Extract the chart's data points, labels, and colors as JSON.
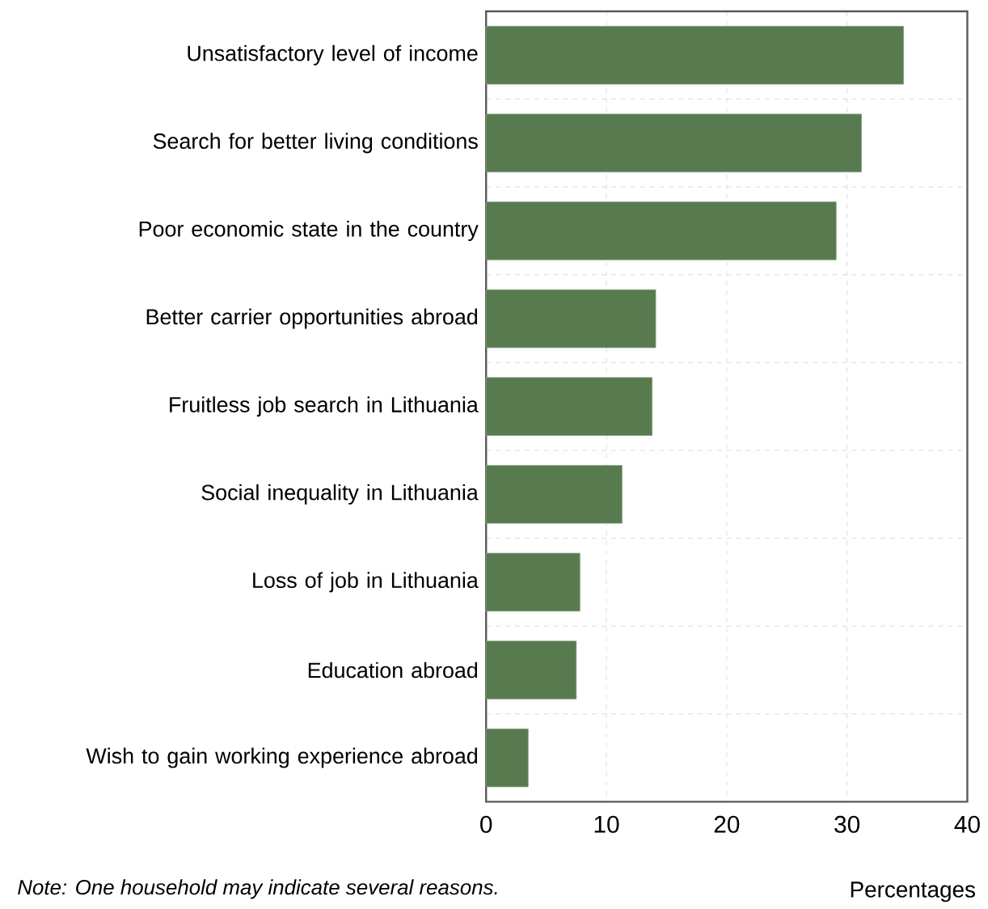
{
  "chart_data": {
    "type": "bar",
    "orientation": "horizontal",
    "categories": [
      "Unsatisfactory level of income",
      "Search for better living conditions",
      "Poor economic state in the country",
      "Better carrier opportunities abroad",
      "Fruitless job search in Lithuania",
      "Social inequality in Lithuania",
      "Loss of job in Lithuania",
      "Education abroad",
      "Wish to gain working experience abroad"
    ],
    "values": [
      34.7,
      31.2,
      29.1,
      14.1,
      13.8,
      11.3,
      7.8,
      7.5,
      3.5
    ],
    "color": "#577a4f",
    "xlim": [
      0,
      40
    ],
    "xticks": [
      0,
      10,
      20,
      30,
      40
    ],
    "xlabel": "Percentages",
    "grid": true,
    "annotations": [
      "Note: One household may indicate several reasons."
    ]
  }
}
